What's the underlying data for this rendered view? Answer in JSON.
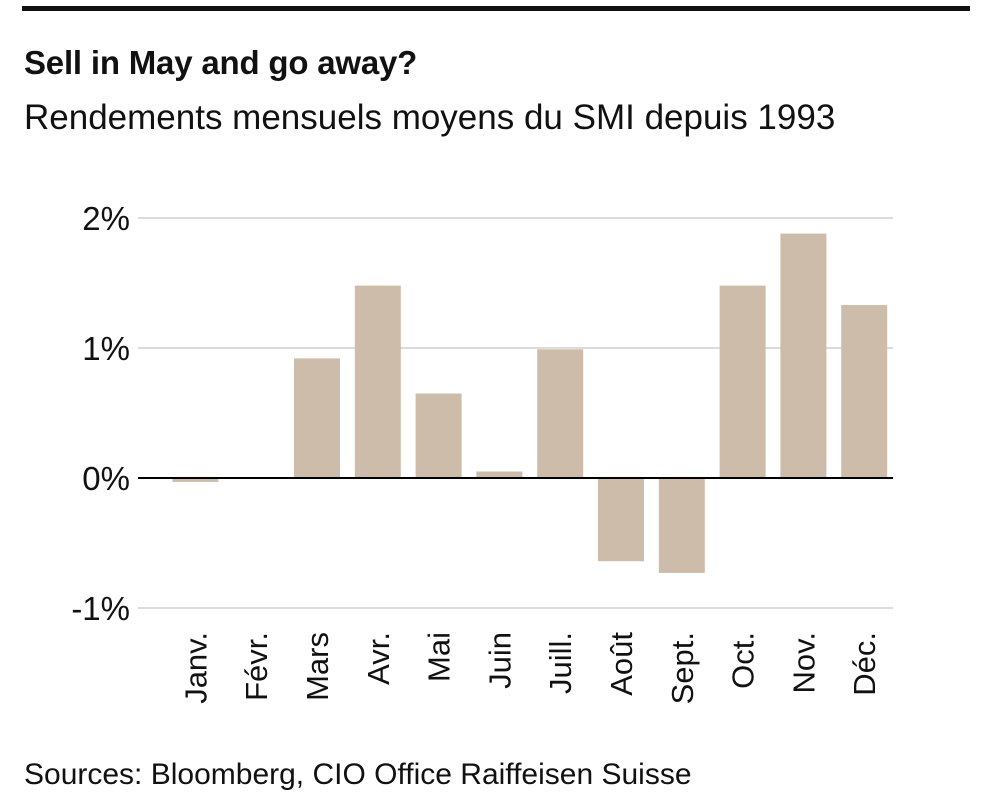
{
  "header": {
    "title": "Sell in May and go away?",
    "subtitle": "Rendements mensuels moyens du SMI depuis 1993"
  },
  "footer": {
    "source": "Sources: Bloomberg, CIO Office Raiffeisen Suisse"
  },
  "chart_data": {
    "type": "bar",
    "categories": [
      "Janv.",
      "Févr.",
      "Mars",
      "Avr.",
      "Mai",
      "Juin",
      "Juill.",
      "Août",
      "Sept.",
      "Oct.",
      "Nov.",
      "Déc."
    ],
    "series": [
      {
        "values": [
          -0.03,
          0.0,
          0.92,
          1.48,
          0.65,
          0.05,
          0.99,
          -0.64,
          -0.73,
          1.48,
          1.88,
          1.33
        ]
      }
    ],
    "ylim": [
      -1,
      2
    ],
    "yticks": [
      -1,
      0,
      1,
      2
    ],
    "ytick_labels": [
      "-1%",
      "0%",
      "1%",
      "2%"
    ],
    "grid": true,
    "colors": {
      "bar": "#ccbca9",
      "grid": "#c8c8c8",
      "axis": "#000000"
    }
  }
}
